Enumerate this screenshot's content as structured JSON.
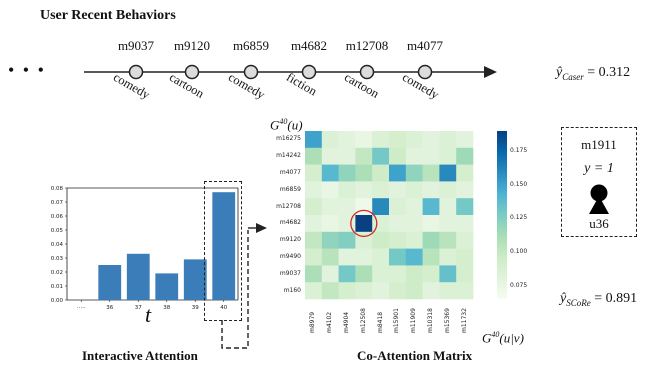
{
  "header": {
    "title": "User Recent Behaviors"
  },
  "ellipsis": "• • •",
  "timeline": [
    {
      "movie": "m9037",
      "genre": "comedy"
    },
    {
      "movie": "m9120",
      "genre": "cartoon"
    },
    {
      "movie": "m6859",
      "genre": "comedy"
    },
    {
      "movie": "m4682",
      "genre": "fiction"
    },
    {
      "movie": "m12708",
      "genre": "cartoon"
    },
    {
      "movie": "m4077",
      "genre": "comedy"
    }
  ],
  "predictions": {
    "caser_label": "ŷ",
    "caser_sub": "Caser",
    "caser_value": "= 0.312",
    "score_label": "ŷ",
    "score_sub": "SCoRe",
    "score_value": "= 0.891"
  },
  "target": {
    "item": "m1911",
    "label": "y = 1",
    "user": "u36"
  },
  "captions": {
    "attention": "Interactive Attention",
    "coattention": "Co-Attention Matrix",
    "t_axis": "t",
    "gu_label": "G",
    "gu_sup": "40",
    "gu_arg": "(u)",
    "guv_label": "G",
    "guv_sup": "40",
    "guv_arg": "(u|v)"
  },
  "chart_data": [
    {
      "type": "bar",
      "title": "",
      "xlabel": "t",
      "ylabel": "",
      "categories": [
        "·····",
        "36",
        "37",
        "38",
        "39",
        "40"
      ],
      "values": [
        0.0,
        0.025,
        0.033,
        0.019,
        0.029,
        0.077
      ],
      "ylim": [
        0,
        0.08
      ],
      "yticks": [
        "0.00",
        "0.01",
        "0.02",
        "0.03",
        "0.04",
        "0.05",
        "0.06",
        "0.07",
        "0.08"
      ],
      "color": "#3a7db8",
      "grid": false
    },
    {
      "type": "heatmap",
      "title": "",
      "rows": [
        "m16275",
        "m14242",
        "m4077",
        "m6859",
        "m12708",
        "m4682",
        "m9120",
        "m9490",
        "m9037",
        "m160"
      ],
      "cols": [
        "m8979",
        "m4102",
        "m4904",
        "m12508",
        "m8418",
        "m15901",
        "m11909",
        "m10318",
        "m15369",
        "m11732"
      ],
      "values": [
        [
          0.15,
          0.085,
          0.08,
          0.075,
          0.085,
          0.09,
          0.085,
          0.08,
          0.085,
          0.08
        ],
        [
          0.11,
          0.08,
          0.08,
          0.1,
          0.13,
          0.095,
          0.08,
          0.08,
          0.085,
          0.115
        ],
        [
          0.09,
          0.14,
          0.12,
          0.11,
          0.095,
          0.15,
          0.12,
          0.105,
          0.16,
          0.09
        ],
        [
          0.08,
          0.075,
          0.085,
          0.08,
          0.085,
          0.08,
          0.085,
          0.08,
          0.085,
          0.08
        ],
        [
          0.09,
          0.08,
          0.08,
          0.07,
          0.16,
          0.085,
          0.08,
          0.14,
          0.08,
          0.13
        ],
        [
          0.08,
          0.075,
          0.08,
          0.19,
          0.085,
          0.08,
          0.08,
          0.075,
          0.08,
          0.08
        ],
        [
          0.1,
          0.12,
          0.125,
          0.085,
          0.095,
          0.09,
          0.085,
          0.115,
          0.105,
          0.085
        ],
        [
          0.09,
          0.105,
          0.08,
          0.08,
          0.085,
          0.13,
          0.14,
          0.105,
          0.085,
          0.09
        ],
        [
          0.11,
          0.08,
          0.13,
          0.11,
          0.085,
          0.085,
          0.095,
          0.09,
          0.135,
          0.09
        ],
        [
          0.085,
          0.1,
          0.09,
          0.085,
          0.08,
          0.09,
          0.095,
          0.08,
          0.085,
          0.085
        ]
      ],
      "highlight": {
        "row": "m4682",
        "col": "m12508"
      },
      "colorbar": {
        "range": [
          0.065,
          0.19
        ],
        "ticks": [
          "0.075",
          "0.100",
          "0.125",
          "0.150",
          "0.175"
        ]
      }
    }
  ],
  "colors": {
    "accent": "#3a7db8",
    "highlight_circle": "#d62728"
  }
}
